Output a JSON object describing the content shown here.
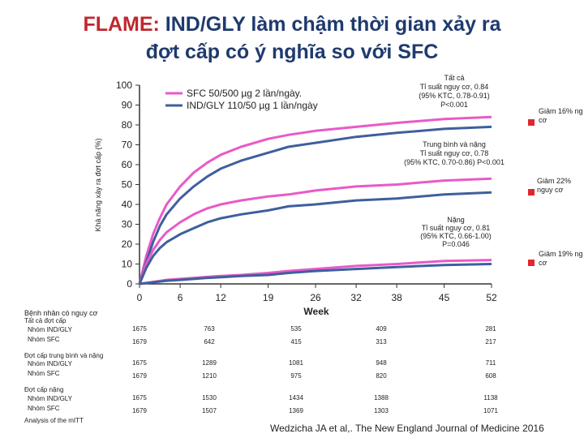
{
  "title": {
    "accent": "FLAME:",
    "line1": " IND/GLY làm chậm thời gian xảy ra",
    "line2": "đợt cấp có ý nghĩa so với SFC"
  },
  "colors": {
    "sfc": "#e85ac8",
    "indgly": "#3e5f9e",
    "red_marker": "#e0282d"
  },
  "chart_data": {
    "type": "line",
    "ylabel": "Khả năng xảy ra đợt cấp (%)",
    "xlabel": "Week",
    "y_ticks": [
      0,
      10,
      20,
      30,
      40,
      50,
      60,
      70,
      80,
      90,
      100
    ],
    "x_ticks": [
      0,
      6,
      12,
      19,
      26,
      32,
      38,
      45,
      52
    ],
    "ylim": [
      0,
      100
    ],
    "xlim": [
      0,
      52
    ],
    "legend": [
      {
        "name": "SFC 50/500 µg 2 lần/ngày.",
        "color": "#e85ac8"
      },
      {
        "name": "IND/GLY 110/50 µg 1 lần/ngày",
        "color": "#3e5f9e"
      }
    ],
    "x": [
      0,
      1,
      2,
      3,
      4,
      6,
      8,
      10,
      12,
      15,
      19,
      22,
      26,
      32,
      38,
      45,
      52
    ],
    "groups": [
      {
        "label": "Tất cả",
        "annotation": [
          "Tất cả",
          "Tỉ suất nguy cơ, 0.84",
          "(95% KTC, 0.78-0.91)",
          "P<0.001"
        ],
        "reduction": [
          "Giảm 16% ng",
          "cơ"
        ],
        "series": [
          {
            "name": "SFC",
            "values": [
              0,
              14,
              25,
              33,
              40,
              49,
              56,
              61,
              65,
              69,
              73,
              75,
              77,
              79,
              81,
              83,
              84
            ]
          },
          {
            "name": "IND/GLY",
            "values": [
              0,
              11,
              21,
              29,
              35,
              43,
              49,
              54,
              58,
              62,
              66,
              69,
              71,
              74,
              76,
              78,
              79
            ]
          }
        ]
      },
      {
        "label": "Trung bình và nặng",
        "annotation": [
          "Trung bình và nặng",
          "Tỉ suất nguy cơ, 0.78",
          "(95% KTC, 0.70-0.86) P<0.001"
        ],
        "reduction": [
          "Giảm 22%",
          "nguy cơ"
        ],
        "series": [
          {
            "name": "SFC",
            "values": [
              0,
              10,
              17,
              22,
              26,
              31,
              35,
              38,
              40,
              42,
              44,
              45,
              47,
              49,
              50,
              52,
              53
            ]
          },
          {
            "name": "IND/GLY",
            "values": [
              0,
              8,
              14,
              18,
              21,
              25,
              28,
              31,
              33,
              35,
              37,
              39,
              40,
              42,
              43,
              45,
              46
            ]
          }
        ]
      },
      {
        "label": "Nặng",
        "annotation": [
          "Nặng",
          "Tỉ suất nguy cơ, 0.81",
          "(95% KTC, 0.66-1.00)",
          "P=0.046"
        ],
        "reduction": [
          "Giảm 19% ng",
          "cơ"
        ],
        "series": [
          {
            "name": "SFC",
            "values": [
              0,
              0.5,
              1,
              1.5,
              2,
              2.5,
              3,
              3.5,
              4,
              4.5,
              5.5,
              6.5,
              7.5,
              9,
              10,
              11.5,
              12
            ]
          },
          {
            "name": "IND/GLY",
            "values": [
              0,
              0.4,
              0.8,
              1.2,
              1.6,
              2,
              2.5,
              3,
              3.4,
              4,
              4.5,
              5.5,
              6.5,
              7.5,
              8.5,
              9.5,
              10
            ]
          }
        ]
      }
    ]
  },
  "table": {
    "header": "Bệnh nhân có nguy cơ",
    "groups": [
      {
        "label": "Tất cả đợt cấp",
        "rows": [
          {
            "label": "Nhóm IND/GLY",
            "values": [
              "1675",
              "763",
              "535",
              "409",
              "281"
            ]
          },
          {
            "label": "Nhóm SFC",
            "values": [
              "1679",
              "642",
              "415",
              "313",
              "217"
            ]
          }
        ]
      },
      {
        "label": "Đợt cấp trung bình và nặng",
        "rows": [
          {
            "label": "Nhóm IND/GLY",
            "values": [
              "1675",
              "1289",
              "1081",
              "948",
              "711"
            ]
          },
          {
            "label": "Nhóm SFC",
            "values": [
              "1679",
              "1210",
              "975",
              "820",
              "608"
            ]
          }
        ]
      },
      {
        "label": "Đợt cấp nặng",
        "rows": [
          {
            "label": "Nhóm IND/GLY",
            "values": [
              "1675",
              "1530",
              "1434",
              "1388",
              "1138"
            ]
          },
          {
            "label": "Nhóm SFC",
            "values": [
              "1679",
              "1507",
              "1369",
              "1303",
              "1071"
            ]
          }
        ]
      }
    ],
    "footnote": "Analysis of the mITT"
  },
  "citation": "Wedzicha JA et al,. The New England Journal of Medicine 2016"
}
